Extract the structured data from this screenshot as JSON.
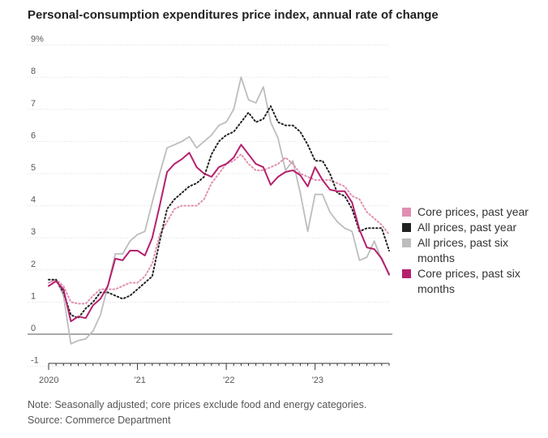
{
  "title": "Personal-consumption expenditures price index, annual rate of change",
  "note": "Note: Seasonally adjusted; core prices exclude food and energy categories.",
  "source": "Source: Commerce Department",
  "colors": {
    "core_past_year": "#e08fb0",
    "all_past_year": "#222222",
    "all_past_six": "#bdbdbd",
    "core_past_six": "#b5206e"
  },
  "chart_data": {
    "type": "line",
    "title": "Personal-consumption expenditures price index, annual rate of change",
    "ylim": [
      -1,
      9
    ],
    "y_ticks": [
      "-1",
      "0",
      "1",
      "2",
      "3",
      "4",
      "5",
      "6",
      "7",
      "8",
      "9%"
    ],
    "x_tick_labels": [
      "2020",
      "'21",
      "'22",
      "'23"
    ],
    "xlabel": "",
    "ylabel": "",
    "legend_position": "right",
    "x": [
      "2020-01",
      "2020-02",
      "2020-03",
      "2020-04",
      "2020-05",
      "2020-06",
      "2020-07",
      "2020-08",
      "2020-09",
      "2020-10",
      "2020-11",
      "2020-12",
      "2021-01",
      "2021-02",
      "2021-03",
      "2021-04",
      "2021-05",
      "2021-06",
      "2021-07",
      "2021-08",
      "2021-09",
      "2021-10",
      "2021-11",
      "2021-12",
      "2022-01",
      "2022-02",
      "2022-03",
      "2022-04",
      "2022-05",
      "2022-06",
      "2022-07",
      "2022-08",
      "2022-09",
      "2022-10",
      "2022-11",
      "2022-12",
      "2023-01",
      "2023-02",
      "2023-03",
      "2023-04",
      "2023-05",
      "2023-06",
      "2023-07",
      "2023-08",
      "2023-09",
      "2023-10",
      "2023-11"
    ],
    "series": [
      {
        "name": "Core prices, past year",
        "style": "dotted",
        "color": "#e08fb0",
        "values": [
          1.6,
          1.7,
          1.5,
          1.0,
          0.95,
          0.95,
          1.2,
          1.4,
          1.4,
          1.4,
          1.5,
          1.6,
          1.6,
          1.8,
          2.2,
          3.1,
          3.5,
          3.9,
          4.0,
          4.0,
          4.0,
          4.2,
          4.7,
          5.0,
          5.3,
          5.4,
          5.6,
          5.3,
          5.1,
          5.1,
          5.2,
          5.3,
          5.5,
          5.3,
          5.0,
          4.9,
          4.8,
          4.8,
          4.8,
          4.7,
          4.6,
          4.3,
          4.2,
          3.8,
          3.6,
          3.4,
          3.1
        ]
      },
      {
        "name": "All prices, past year",
        "style": "dotted",
        "color": "#222222",
        "values": [
          1.7,
          1.7,
          1.3,
          0.6,
          0.5,
          0.8,
          1.0,
          1.3,
          1.3,
          1.2,
          1.1,
          1.2,
          1.4,
          1.6,
          1.8,
          2.9,
          3.9,
          4.2,
          4.4,
          4.6,
          4.7,
          4.9,
          5.6,
          6.0,
          6.2,
          6.3,
          6.6,
          6.9,
          6.6,
          6.7,
          7.1,
          6.6,
          6.5,
          6.5,
          6.3,
          5.9,
          5.4,
          5.4,
          5.0,
          4.4,
          4.3,
          3.9,
          3.2,
          3.3,
          3.3,
          3.3,
          2.6
        ]
      },
      {
        "name": "All prices, past six months",
        "style": "solid",
        "color": "#bdbdbd",
        "values": [
          1.6,
          1.7,
          1.2,
          -0.3,
          -0.2,
          -0.15,
          0.1,
          0.6,
          1.5,
          2.5,
          2.5,
          2.9,
          3.1,
          3.2,
          4.1,
          5.0,
          5.8,
          5.9,
          6.0,
          6.15,
          5.8,
          6.0,
          6.2,
          6.5,
          6.6,
          7.0,
          8.0,
          7.3,
          7.2,
          7.7,
          6.6,
          6.1,
          5.1,
          5.4,
          4.4,
          3.2,
          4.35,
          4.35,
          3.8,
          3.5,
          3.3,
          3.2,
          2.3,
          2.4,
          2.9,
          2.3,
          1.9
        ]
      },
      {
        "name": "Core prices, past six months",
        "style": "solid",
        "color": "#b5206e",
        "values": [
          1.5,
          1.65,
          1.4,
          0.4,
          0.55,
          0.5,
          0.9,
          1.1,
          1.5,
          2.35,
          2.3,
          2.6,
          2.6,
          2.45,
          3.0,
          4.0,
          5.05,
          5.3,
          5.45,
          5.65,
          5.2,
          5.0,
          4.9,
          5.2,
          5.3,
          5.5,
          5.9,
          5.6,
          5.3,
          5.2,
          4.65,
          4.9,
          5.05,
          5.1,
          4.95,
          4.6,
          5.2,
          4.8,
          4.5,
          4.45,
          4.45,
          4.1,
          3.25,
          2.7,
          2.65,
          2.35,
          1.85
        ]
      }
    ]
  }
}
